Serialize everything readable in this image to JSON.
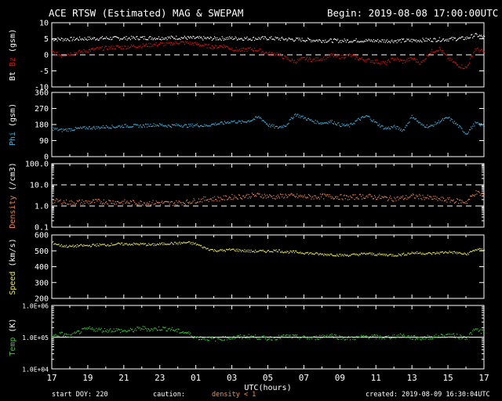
{
  "header": {
    "title": "ACE RTSW (Estimated) MAG & SWEPAM",
    "begin": "Begin: 2019-08-08 17:00:00UTC"
  },
  "footer": {
    "start_doy": "start DOY: 220",
    "caution": "caution:",
    "density_note": "density < 1",
    "created": "created: 2019-08-09 16:30:04UTC"
  },
  "colors": {
    "background": "#000000",
    "axes": "#ffffff",
    "bt": "#ffffff",
    "bz": "#e01010",
    "phi": "#3bb3e0",
    "density": "#e8824a",
    "speed": "#e8e84a",
    "temp": "#2ecc2e",
    "caution": "#ff8c3a"
  },
  "chart_data": {
    "type": "scatter",
    "x_axis": {
      "label": "UTC(hours)",
      "tick_labels": [
        "17",
        "19",
        "21",
        "23",
        "01",
        "03",
        "05",
        "07",
        "09",
        "11",
        "13",
        "15",
        "17"
      ],
      "range_hours": [
        0,
        24
      ]
    },
    "panels": [
      {
        "id": "mag",
        "ylabel_parts": [
          {
            "text": "Bt",
            "color": "#ffffff"
          },
          {
            "text": "Bz",
            "color": "#e01010"
          },
          {
            "text": "(gsm)",
            "color": "#ffffff"
          }
        ],
        "yscale": "linear",
        "ylim": [
          -10,
          10
        ],
        "yticks": [
          -10,
          -5,
          0,
          5,
          10
        ],
        "tick_labels": [
          "-10",
          "-5",
          "0",
          "5",
          "10"
        ],
        "ref_lines": [
          {
            "y": 0,
            "style": "dashed"
          }
        ],
        "series": [
          {
            "name": "Bt",
            "color": "#ffffff",
            "x": [
              0,
              1,
              2,
              3,
              4,
              5,
              6,
              7,
              8,
              9,
              10,
              11,
              12,
              13,
              14,
              15,
              16,
              17,
              18,
              19,
              20,
              21,
              22,
              23,
              23.5,
              24
            ],
            "y": [
              5,
              5,
              5.2,
              5.3,
              5.3,
              5.4,
              5.4,
              5.5,
              5.3,
              5.2,
              5.3,
              5.2,
              5.3,
              5,
              4.8,
              4.6,
              4.5,
              4.6,
              4.5,
              4.5,
              4.6,
              4.8,
              5,
              5.3,
              6.3,
              5.6
            ]
          },
          {
            "name": "Bz",
            "color": "#e01010",
            "x": [
              0,
              0.5,
              1,
              1.5,
              2,
              2.5,
              3,
              3.5,
              4,
              4.5,
              5,
              5.5,
              6,
              6.5,
              7,
              7.5,
              8,
              8.5,
              9,
              9.5,
              10,
              10.5,
              11,
              11.5,
              12,
              12.5,
              13,
              13.5,
              14,
              14.5,
              15,
              15.5,
              16,
              16.5,
              17,
              17.5,
              18,
              18.5,
              19,
              19.5,
              20,
              20.5,
              21,
              21.5,
              22,
              22.5,
              23,
              23.5,
              24
            ],
            "y": [
              1,
              0,
              0.5,
              1,
              1.5,
              2,
              2.2,
              2.5,
              2.5,
              2.8,
              3,
              3.2,
              3.5,
              3.5,
              4,
              3.8,
              3.5,
              3,
              2.5,
              3,
              2,
              1.5,
              2,
              1.5,
              0.5,
              0.5,
              -1,
              -2,
              -1,
              -1.5,
              -1,
              0,
              -0.5,
              0,
              -1,
              -1.5,
              -2,
              -2.5,
              -1,
              -2,
              -1,
              -2.5,
              1,
              2,
              -1,
              -3,
              -4,
              2,
              1
            ]
          }
        ]
      },
      {
        "id": "phi",
        "ylabel_parts": [
          {
            "text": "Phi",
            "color": "#3bb3e0"
          },
          {
            "text": "(gsm)",
            "color": "#ffffff"
          }
        ],
        "yscale": "linear",
        "ylim": [
          0,
          360
        ],
        "yticks": [
          0,
          90,
          180,
          270,
          360
        ],
        "tick_labels": [
          "0",
          "90",
          "180",
          "270",
          "360"
        ],
        "ref_lines": [],
        "series": [
          {
            "name": "Phi",
            "color": "#3bb3e0",
            "x": [
              0,
              0.5,
              1,
              1.5,
              2,
              2.5,
              3,
              3.5,
              4,
              4.5,
              5,
              5.5,
              6,
              6.5,
              7,
              7.5,
              8,
              8.5,
              9,
              9.5,
              10,
              10.5,
              11,
              11.5,
              12,
              12.5,
              13,
              13.5,
              14,
              14.5,
              15,
              15.5,
              16,
              16.5,
              17,
              17.5,
              18,
              18.5,
              19,
              19.5,
              20,
              20.5,
              21,
              21.5,
              22,
              22.5,
              23,
              23.5,
              24
            ],
            "y": [
              160,
              150,
              155,
              160,
              165,
              165,
              170,
              170,
              175,
              175,
              175,
              180,
              180,
              175,
              180,
              175,
              180,
              175,
              185,
              190,
              200,
              195,
              205,
              225,
              180,
              165,
              180,
              240,
              220,
              200,
              190,
              200,
              180,
              175,
              210,
              230,
              190,
              160,
              170,
              150,
              230,
              180,
              170,
              200,
              220,
              180,
              130,
              190,
              175
            ]
          }
        ]
      },
      {
        "id": "density",
        "ylabel_parts": [
          {
            "text": "Density",
            "color": "#e8824a"
          },
          {
            "text": "(/cm3)",
            "color": "#ffffff"
          }
        ],
        "yscale": "log",
        "ylim": [
          0.1,
          100
        ],
        "yticks": [
          0.1,
          1,
          10,
          100
        ],
        "tick_labels": [
          "0.1",
          "1.0",
          "10.0",
          "100.0"
        ],
        "ref_lines": [
          {
            "y": 1,
            "style": "dashed"
          },
          {
            "y": 10,
            "style": "dashed"
          }
        ],
        "series": [
          {
            "name": "Density",
            "color": "#e8824a",
            "x": [
              0,
              0.5,
              1,
              1.5,
              2,
              2.5,
              3,
              3.5,
              4,
              4.5,
              5,
              5.5,
              6,
              6.5,
              7,
              7.5,
              8,
              8.5,
              9,
              9.5,
              10,
              10.5,
              11,
              11.5,
              12,
              12.5,
              13,
              13.5,
              14,
              14.5,
              15,
              15.5,
              16,
              16.5,
              17,
              17.5,
              18,
              18.5,
              19,
              19.5,
              20,
              20.5,
              21,
              21.5,
              22,
              22.5,
              23,
              23.5,
              24
            ],
            "y": [
              1.8,
              1.7,
              1.5,
              1.6,
              1.6,
              1.7,
              1.7,
              1.6,
              1.6,
              1.5,
              1.5,
              1.5,
              1.5,
              1.4,
              1.5,
              1.6,
              1.9,
              2.2,
              2.3,
              2.4,
              2.8,
              2.9,
              3.2,
              3.4,
              3.0,
              2.8,
              3.3,
              3.0,
              2.9,
              2.8,
              3.0,
              2.9,
              2.8,
              2.6,
              2.9,
              3.0,
              2.7,
              2.5,
              2.3,
              2.5,
              3.0,
              2.8,
              2.5,
              2.2,
              2.0,
              1.8,
              1.6,
              4.5,
              3.5
            ]
          }
        ]
      },
      {
        "id": "speed",
        "ylabel_parts": [
          {
            "text": "Speed",
            "color": "#e8e84a"
          },
          {
            "text": "(km/s)",
            "color": "#ffffff"
          }
        ],
        "yscale": "linear",
        "ylim": [
          200,
          600
        ],
        "yticks": [
          200,
          300,
          400,
          500,
          600
        ],
        "tick_labels": [
          "200",
          "300",
          "400",
          "500",
          "600"
        ],
        "ref_lines": [],
        "series": [
          {
            "name": "Speed",
            "color": "#e8e84a",
            "x": [
              0,
              0.5,
              1,
              1.5,
              2,
              2.5,
              3,
              3.5,
              4,
              4.5,
              5,
              5.5,
              6,
              6.5,
              7,
              7.5,
              8,
              8.5,
              9,
              9.5,
              10,
              10.5,
              11,
              11.5,
              12,
              12.5,
              13,
              13.5,
              14,
              14.5,
              15,
              15.5,
              16,
              16.5,
              17,
              17.5,
              18,
              18.5,
              19,
              19.5,
              20,
              20.5,
              21,
              21.5,
              22,
              22.5,
              23,
              23.5,
              24
            ],
            "y": [
              555,
              535,
              530,
              535,
              535,
              540,
              540,
              545,
              545,
              545,
              545,
              540,
              545,
              550,
              550,
              555,
              545,
              520,
              505,
              505,
              510,
              505,
              500,
              500,
              500,
              505,
              495,
              495,
              490,
              485,
              480,
              480,
              475,
              475,
              480,
              485,
              480,
              478,
              475,
              480,
              490,
              488,
              485,
              490,
              495,
              490,
              480,
              510,
              510
            ]
          }
        ]
      },
      {
        "id": "temp",
        "ylabel_parts": [
          {
            "text": "Temp",
            "color": "#2ecc2e"
          },
          {
            "text": "(K)",
            "color": "#ffffff"
          }
        ],
        "yscale": "log",
        "ylim": [
          10000,
          1000000
        ],
        "yticks": [
          10000,
          100000,
          1000000
        ],
        "tick_labels": [
          "1.0E+04",
          "1.0E+05",
          "1.0E+06"
        ],
        "ref_lines": [
          {
            "y": 100000,
            "style": "solid"
          }
        ],
        "series": [
          {
            "name": "Temp",
            "color": "#2ecc2e",
            "x": [
              0,
              0.5,
              1,
              1.5,
              2,
              2.5,
              3,
              3.5,
              4,
              4.5,
              5,
              5.5,
              6,
              6.5,
              7,
              7.5,
              8,
              8.5,
              9,
              9.5,
              10,
              10.5,
              11,
              11.5,
              12,
              12.5,
              13,
              13.5,
              14,
              14.5,
              15,
              15.5,
              16,
              16.5,
              17,
              17.5,
              18,
              18.5,
              19,
              19.5,
              20,
              20.5,
              21,
              21.5,
              22,
              22.5,
              23,
              23.5,
              24
            ],
            "y": [
              110000,
              130000,
              110000,
              150000,
              190000,
              180000,
              170000,
              175000,
              160000,
              170000,
              200000,
              180000,
              195000,
              190000,
              160000,
              140000,
              100000,
              95000,
              90000,
              95000,
              100000,
              105000,
              110000,
              100000,
              95000,
              100000,
              110000,
              105000,
              100000,
              95000,
              110000,
              120000,
              100000,
              95000,
              100000,
              110000,
              105000,
              100000,
              110000,
              115000,
              100000,
              95000,
              105000,
              110000,
              120000,
              110000,
              100000,
              180000,
              150000
            ]
          }
        ]
      }
    ]
  }
}
